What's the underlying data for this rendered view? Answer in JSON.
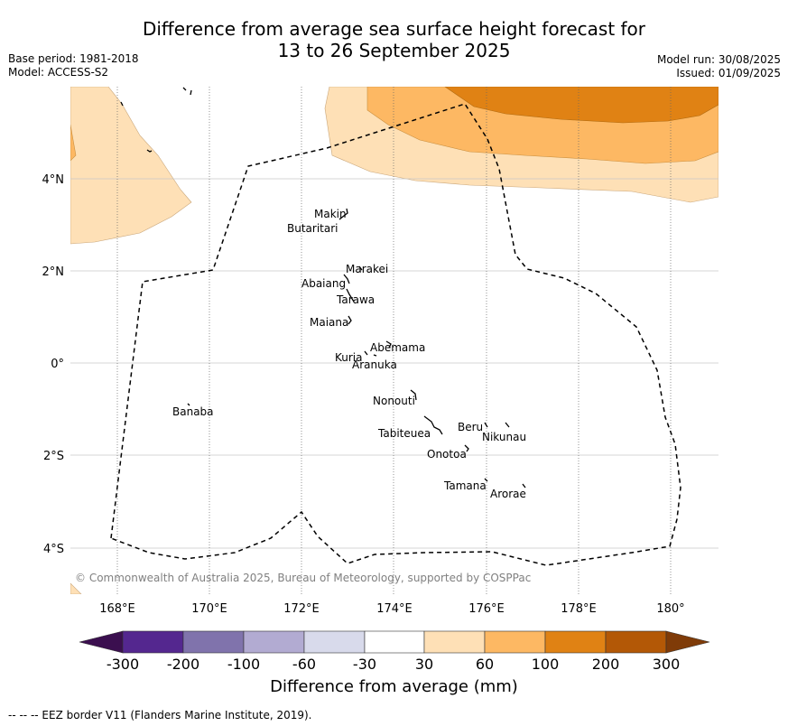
{
  "header": {
    "title_line1": "Difference from average sea surface height forecast for",
    "title_line2": "13 to 26 September 2025",
    "base_period": "Base period: 1981-2018",
    "model": "Model: ACCESS-S2",
    "model_run": "Model run: 30/08/2025",
    "issued": "Issued: 01/09/2025"
  },
  "map": {
    "lat_labels": [
      "4°N",
      "2°N",
      "0°",
      "2°S",
      "4°S"
    ],
    "lon_labels": [
      "168°E",
      "170°E",
      "172°E",
      "174°E",
      "176°E",
      "178°E",
      "180°"
    ],
    "islands": [
      "Makin",
      "Butaritari",
      "Marakei",
      "Abaiang",
      "Tarawa",
      "Maiana",
      "Abemama",
      "Kuria",
      "Aranuka",
      "Banaba",
      "Nonouti",
      "Tabiteuea",
      "Beru",
      "Nikunau",
      "Onotoa",
      "Tamana",
      "Arorae"
    ],
    "copyright": "© Commonwealth of Australia 2025, Bureau of Meteorology, supported by COSPPac"
  },
  "legend": {
    "ticks": [
      "-300",
      "-200",
      "-100",
      "-60",
      "-30",
      "30",
      "60",
      "100",
      "200",
      "300"
    ],
    "title": "Difference from average (mm)",
    "colors": [
      "#3b0f4f",
      "#54278f",
      "#8073ac",
      "#b2abd2",
      "#d8daeb",
      "#ffffff",
      "#fee0b6",
      "#fdb863",
      "#e08214",
      "#b35806",
      "#7f3b08"
    ]
  },
  "footnote": "--  --  -- EEZ border V11 (Flanders Marine Institute, 2019)."
}
